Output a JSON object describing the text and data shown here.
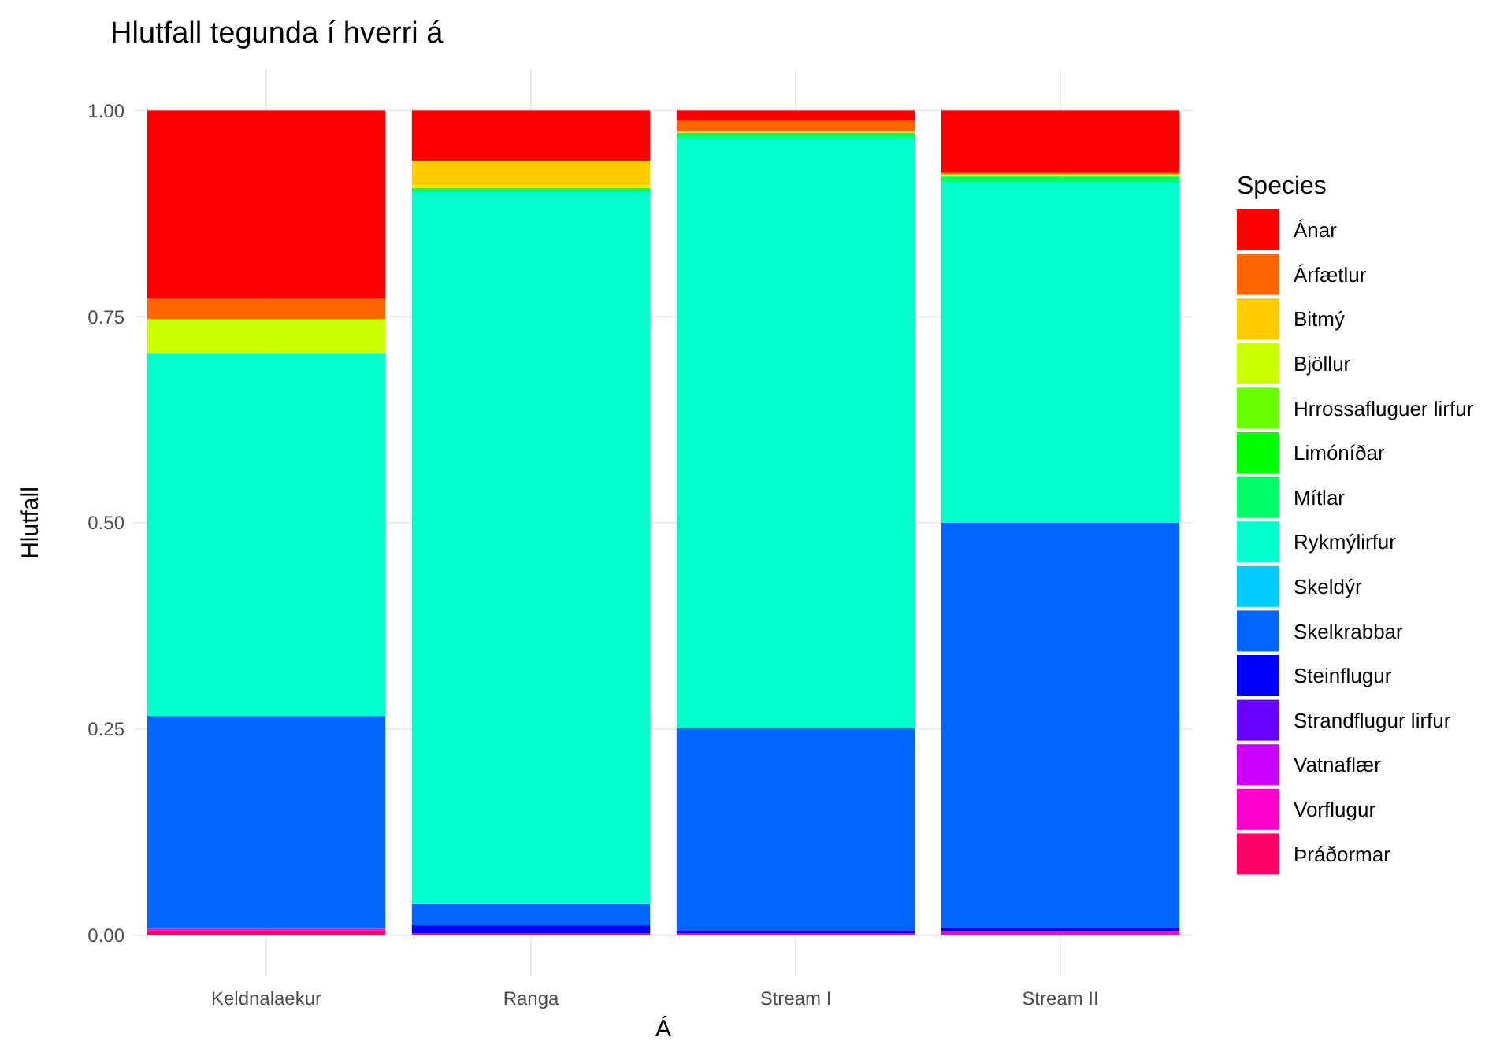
{
  "chart_data": {
    "type": "bar",
    "title": "Hlutfall tegunda í hverri á",
    "xlabel": "Á",
    "ylabel": "Hlutfall",
    "legend_title": "Species",
    "categories": [
      "Keldnalaekur",
      "Ranga",
      "Stream I",
      "Stream II"
    ],
    "stacked": true,
    "ylim": [
      -0.05,
      1.05
    ],
    "yticks": [
      {
        "value": 0,
        "label": "0.00"
      },
      {
        "value": 0.25,
        "label": "0.25"
      },
      {
        "value": 0.5,
        "label": "0.50"
      },
      {
        "value": 0.75,
        "label": "0.75"
      },
      {
        "value": 1,
        "label": "1.00"
      }
    ],
    "grid": true,
    "legend": "right",
    "series": [
      {
        "name": "Þráðormar",
        "color": "#ff0066",
        "values": [
          0.006,
          0.002,
          0,
          0
        ]
      },
      {
        "name": "Vorflugur",
        "color": "#ff00cc",
        "values": [
          0.002,
          0,
          0.002,
          0.005
        ]
      },
      {
        "name": "Vatnaflær",
        "color": "#cc00ff",
        "values": [
          0,
          0,
          0,
          0
        ]
      },
      {
        "name": "Strandflugur lirfur",
        "color": "#6600ff",
        "values": [
          0,
          0,
          0,
          0
        ]
      },
      {
        "name": "Steinflugur",
        "color": "#0000ff",
        "values": [
          0,
          0.01,
          0.004,
          0.004
        ]
      },
      {
        "name": "Skelkrabbar",
        "color": "#0066ff",
        "values": [
          0.258,
          0.026,
          0.245,
          0.491
        ]
      },
      {
        "name": "Skeldýr",
        "color": "#00ccff",
        "values": [
          0,
          0,
          0,
          0
        ]
      },
      {
        "name": "Rykmýlirfur",
        "color": "#00ffcc",
        "values": [
          0.44,
          0.863,
          0.716,
          0.413
        ]
      },
      {
        "name": "Mítlar",
        "color": "#00ff66",
        "values": [
          0,
          0.005,
          0.006,
          0.007
        ]
      },
      {
        "name": "Limóníðar",
        "color": "#00ff00",
        "values": [
          0,
          0,
          0,
          0
        ]
      },
      {
        "name": "Hrrossafluguer lirfur",
        "color": "#66ff00",
        "values": [
          0,
          0,
          0,
          0
        ]
      },
      {
        "name": "Bjöllur",
        "color": "#ccff00",
        "values": [
          0.041,
          0.003,
          0,
          0.003
        ]
      },
      {
        "name": "Bitmý",
        "color": "#ffcc00",
        "values": [
          0,
          0.03,
          0.002,
          0
        ]
      },
      {
        "name": "Árfætlur",
        "color": "#ff6600",
        "values": [
          0.025,
          0,
          0.013,
          0.002
        ]
      },
      {
        "name": "Ánar",
        "color": "#ff0000",
        "values": [
          0.228,
          0.061,
          0.012,
          0.075
        ]
      }
    ]
  }
}
